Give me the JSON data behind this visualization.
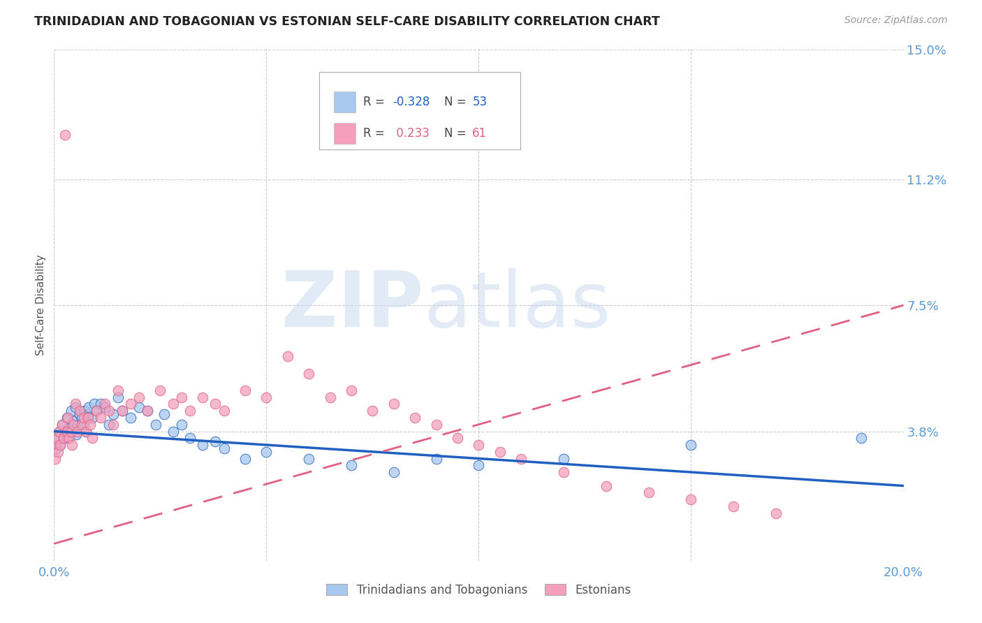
{
  "title": "TRINIDADIAN AND TOBAGONIAN VS ESTONIAN SELF-CARE DISABILITY CORRELATION CHART",
  "source": "Source: ZipAtlas.com",
  "ylabel": "Self-Care Disability",
  "xlim": [
    0.0,
    0.2
  ],
  "ylim": [
    0.0,
    0.15
  ],
  "xtick_vals": [
    0.0,
    0.05,
    0.1,
    0.15,
    0.2
  ],
  "xtick_labels": [
    "0.0%",
    "",
    "",
    "",
    "20.0%"
  ],
  "ytick_right_vals": [
    0.038,
    0.075,
    0.112,
    0.15
  ],
  "ytick_right_labels": [
    "3.8%",
    "7.5%",
    "11.2%",
    "15.0%"
  ],
  "color_blue": "#A8C8EE",
  "color_pink": "#F4A0BC",
  "color_blue_line": "#2060C0",
  "color_pink_line": "#E06080",
  "color_axis_label": "#5B9BD5",
  "color_title": "#222222",
  "color_grid": "#CCCCCC",
  "blue_trend_x0": 0.0,
  "blue_trend_y0": 0.038,
  "blue_trend_x1": 0.2,
  "blue_trend_y1": 0.022,
  "pink_trend_x0": 0.0,
  "pink_trend_y0": 0.005,
  "pink_trend_x1": 0.2,
  "pink_trend_y1": 0.075,
  "trinidadian_x": [
    0.0005,
    0.001,
    0.0012,
    0.0015,
    0.002,
    0.0022,
    0.0025,
    0.003,
    0.0032,
    0.0035,
    0.004,
    0.0042,
    0.0045,
    0.005,
    0.0052,
    0.0055,
    0.006,
    0.0065,
    0.007,
    0.0072,
    0.0075,
    0.008,
    0.0082,
    0.009,
    0.0095,
    0.01,
    0.011,
    0.012,
    0.013,
    0.014,
    0.015,
    0.016,
    0.018,
    0.02,
    0.022,
    0.024,
    0.026,
    0.028,
    0.03,
    0.032,
    0.035,
    0.038,
    0.04,
    0.045,
    0.05,
    0.06,
    0.07,
    0.08,
    0.09,
    0.1,
    0.12,
    0.15,
    0.19
  ],
  "trinidadian_y": [
    0.033,
    0.036,
    0.038,
    0.034,
    0.04,
    0.036,
    0.038,
    0.042,
    0.036,
    0.039,
    0.044,
    0.038,
    0.041,
    0.045,
    0.037,
    0.04,
    0.043,
    0.042,
    0.04,
    0.044,
    0.038,
    0.043,
    0.045,
    0.042,
    0.046,
    0.044,
    0.046,
    0.045,
    0.04,
    0.043,
    0.048,
    0.044,
    0.042,
    0.045,
    0.044,
    0.04,
    0.043,
    0.038,
    0.04,
    0.036,
    0.034,
    0.035,
    0.033,
    0.03,
    0.032,
    0.03,
    0.028,
    0.026,
    0.03,
    0.028,
    0.03,
    0.034,
    0.036
  ],
  "estonian_x": [
    0.0003,
    0.0005,
    0.0008,
    0.001,
    0.0012,
    0.0015,
    0.002,
    0.0022,
    0.0025,
    0.003,
    0.0032,
    0.0035,
    0.004,
    0.0042,
    0.0045,
    0.005,
    0.0055,
    0.006,
    0.0065,
    0.007,
    0.0075,
    0.008,
    0.0085,
    0.009,
    0.01,
    0.011,
    0.012,
    0.013,
    0.014,
    0.015,
    0.016,
    0.018,
    0.02,
    0.022,
    0.025,
    0.028,
    0.03,
    0.032,
    0.035,
    0.038,
    0.04,
    0.045,
    0.05,
    0.055,
    0.06,
    0.065,
    0.07,
    0.075,
    0.08,
    0.085,
    0.09,
    0.095,
    0.1,
    0.105,
    0.11,
    0.12,
    0.13,
    0.14,
    0.15,
    0.16,
    0.17
  ],
  "estonian_y": [
    0.03,
    0.034,
    0.036,
    0.032,
    0.038,
    0.034,
    0.04,
    0.036,
    0.125,
    0.038,
    0.042,
    0.036,
    0.038,
    0.034,
    0.04,
    0.046,
    0.038,
    0.044,
    0.04,
    0.042,
    0.038,
    0.042,
    0.04,
    0.036,
    0.044,
    0.042,
    0.046,
    0.044,
    0.04,
    0.05,
    0.044,
    0.046,
    0.048,
    0.044,
    0.05,
    0.046,
    0.048,
    0.044,
    0.048,
    0.046,
    0.044,
    0.05,
    0.048,
    0.06,
    0.055,
    0.048,
    0.05,
    0.044,
    0.046,
    0.042,
    0.04,
    0.036,
    0.034,
    0.032,
    0.03,
    0.026,
    0.022,
    0.02,
    0.018,
    0.016,
    0.014
  ]
}
